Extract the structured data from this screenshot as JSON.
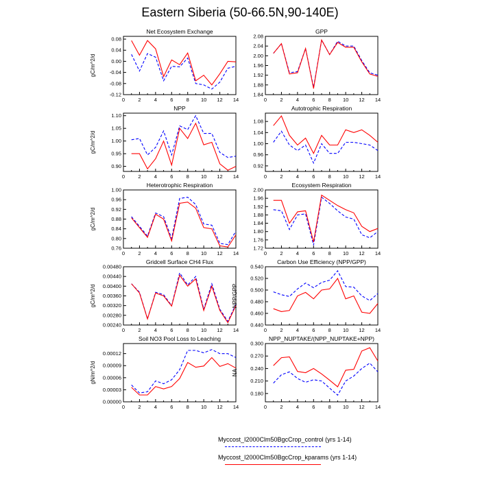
{
  "title": "Eastern Siberia (50-66.5N,90-140E)",
  "colors": {
    "control": "#0000ff",
    "kparams": "#ff0000"
  },
  "legend": {
    "control_label": "Myccost_I2000Clm50BgcCrop_control (yrs 1-14)",
    "kparams_label": "Myccost_I2000Clm50BgcCrop_kparams (yrs 1-14)"
  },
  "chart_data": [
    {
      "type": "line",
      "title": "Net Ecosystem Exchange",
      "ylabel": "gC/m^2/d",
      "xlabel": "",
      "xlim": [
        0,
        14
      ],
      "xticks": [
        "0",
        "2",
        "4",
        "6",
        "8",
        "10",
        "12",
        "14"
      ],
      "ylim": [
        -0.12,
        0.09
      ],
      "yticks": [
        "-0.12",
        "-0.08",
        "-0.04",
        "0.00",
        "0.04",
        "0.08"
      ],
      "ytick_values": [
        -0.12,
        -0.08,
        -0.04,
        0.0,
        0.04,
        0.08
      ],
      "x": [
        1,
        2,
        3,
        4,
        5,
        6,
        7,
        8,
        9,
        10,
        11,
        12,
        13,
        14
      ],
      "series": [
        {
          "name": "control",
          "values": [
            0.025,
            -0.035,
            0.028,
            0.015,
            -0.07,
            -0.018,
            -0.02,
            0.012,
            -0.08,
            -0.085,
            -0.1,
            -0.075,
            -0.025,
            -0.018
          ]
        },
        {
          "name": "kparams",
          "values": [
            0.075,
            0.022,
            0.075,
            0.045,
            -0.055,
            0.005,
            -0.012,
            0.03,
            -0.07,
            -0.05,
            -0.085,
            -0.045,
            0.0,
            -0.002
          ]
        }
      ]
    },
    {
      "type": "line",
      "title": "GPP",
      "ylabel": "",
      "xlabel": "",
      "xlim": [
        0,
        14
      ],
      "xticks": [
        "0",
        "2",
        "4",
        "6",
        "8",
        "10",
        "12",
        "14"
      ],
      "ylim": [
        1.84,
        2.08
      ],
      "yticks": [
        "1.84",
        "1.88",
        "1.92",
        "1.96",
        "2.00",
        "2.04",
        "2.08"
      ],
      "ytick_values": [
        1.84,
        1.88,
        1.92,
        1.96,
        2.0,
        2.04,
        2.08
      ],
      "x": [
        1,
        2,
        3,
        4,
        5,
        6,
        7,
        8,
        9,
        10,
        11,
        12,
        13,
        14
      ],
      "series": [
        {
          "name": "control",
          "values": [
            2.01,
            2.05,
            1.93,
            1.935,
            2.03,
            1.87,
            2.065,
            2.005,
            2.06,
            2.04,
            2.04,
            1.98,
            1.93,
            1.92
          ]
        },
        {
          "name": "kparams",
          "values": [
            2.01,
            2.05,
            1.925,
            1.93,
            2.03,
            1.865,
            2.065,
            2.005,
            2.055,
            2.035,
            2.035,
            1.975,
            1.925,
            1.915
          ]
        }
      ]
    },
    {
      "type": "line",
      "title": "NPP",
      "ylabel": "gC/m^2/d",
      "xlabel": "",
      "xlim": [
        0,
        14
      ],
      "xticks": [
        "0",
        "2",
        "4",
        "6",
        "8",
        "10",
        "12",
        "14"
      ],
      "ylim": [
        0.88,
        1.11
      ],
      "yticks": [
        "0.90",
        "0.95",
        "1.00",
        "1.05",
        "1.10"
      ],
      "ytick_values": [
        0.9,
        0.95,
        1.0,
        1.05,
        1.1
      ],
      "x": [
        1,
        2,
        3,
        4,
        5,
        6,
        7,
        8,
        9,
        10,
        11,
        12,
        13,
        14
      ],
      "series": [
        {
          "name": "control",
          "values": [
            1.005,
            1.01,
            0.945,
            0.975,
            1.04,
            0.945,
            1.06,
            1.045,
            1.1,
            1.03,
            1.03,
            0.955,
            0.935,
            0.94
          ]
        },
        {
          "name": "kparams",
          "values": [
            0.95,
            0.95,
            0.89,
            0.93,
            1.0,
            0.905,
            1.05,
            1.01,
            1.07,
            0.985,
            0.995,
            0.91,
            0.885,
            0.9
          ]
        }
      ]
    },
    {
      "type": "line",
      "title": "Autotrophic Respiration",
      "ylabel": "",
      "xlabel": "",
      "xlim": [
        0,
        14
      ],
      "xticks": [
        "0",
        "2",
        "4",
        "6",
        "8",
        "10",
        "12",
        "14"
      ],
      "ylim": [
        0.9,
        1.11
      ],
      "yticks": [
        "0.92",
        "0.96",
        "1.00",
        "1.04",
        "1.08"
      ],
      "ytick_values": [
        0.92,
        0.96,
        1.0,
        1.04,
        1.08
      ],
      "x": [
        1,
        2,
        3,
        4,
        5,
        6,
        7,
        8,
        9,
        10,
        11,
        12,
        13,
        14
      ],
      "series": [
        {
          "name": "control",
          "values": [
            1.005,
            1.045,
            0.995,
            0.975,
            0.995,
            0.93,
            1.0,
            0.965,
            0.965,
            1.005,
            1.005,
            1.0,
            0.995,
            0.975
          ]
        },
        {
          "name": "kparams",
          "values": [
            1.065,
            1.1,
            1.03,
            0.995,
            1.02,
            0.965,
            1.03,
            0.995,
            0.995,
            1.05,
            1.04,
            1.05,
            1.03,
            1.005
          ]
        }
      ]
    },
    {
      "type": "line",
      "title": "Heterotrophic Respiration",
      "ylabel": "gC/m^2/d",
      "xlabel": "",
      "xlim": [
        0,
        14
      ],
      "xticks": [
        "0",
        "2",
        "4",
        "6",
        "8",
        "10",
        "12",
        "14"
      ],
      "ylim": [
        0.76,
        1.0
      ],
      "yticks": [
        "0.76",
        "0.80",
        "0.84",
        "0.88",
        "0.92",
        "0.96",
        "1.00"
      ],
      "ytick_values": [
        0.76,
        0.8,
        0.84,
        0.88,
        0.92,
        0.96,
        1.0
      ],
      "x": [
        1,
        2,
        3,
        4,
        5,
        6,
        7,
        8,
        9,
        10,
        11,
        12,
        13,
        14
      ],
      "series": [
        {
          "name": "control",
          "values": [
            0.89,
            0.85,
            0.81,
            0.905,
            0.89,
            0.8,
            0.965,
            0.97,
            0.94,
            0.86,
            0.855,
            0.78,
            0.775,
            0.83
          ]
        },
        {
          "name": "kparams",
          "values": [
            0.885,
            0.845,
            0.805,
            0.9,
            0.88,
            0.79,
            0.945,
            0.95,
            0.925,
            0.845,
            0.84,
            0.77,
            0.765,
            0.815
          ]
        }
      ]
    },
    {
      "type": "line",
      "title": "Ecosystem Respiration",
      "ylabel": "",
      "xlabel": "",
      "xlim": [
        0,
        14
      ],
      "xticks": [
        "0",
        "2",
        "4",
        "6",
        "8",
        "10",
        "12",
        "14"
      ],
      "ylim": [
        1.72,
        2.0
      ],
      "yticks": [
        "1.72",
        "1.76",
        "1.80",
        "1.84",
        "1.88",
        "1.92",
        "1.96",
        "2.00"
      ],
      "ytick_values": [
        1.72,
        1.76,
        1.8,
        1.84,
        1.88,
        1.92,
        1.96,
        2.0
      ],
      "x": [
        1,
        2,
        3,
        4,
        5,
        6,
        7,
        8,
        9,
        10,
        11,
        12,
        13,
        14
      ],
      "series": [
        {
          "name": "control",
          "values": [
            1.905,
            1.9,
            1.81,
            1.88,
            1.885,
            1.735,
            1.965,
            1.935,
            1.9,
            1.87,
            1.86,
            1.785,
            1.77,
            1.8
          ]
        },
        {
          "name": "kparams",
          "values": [
            1.95,
            1.95,
            1.84,
            1.895,
            1.9,
            1.75,
            1.975,
            1.95,
            1.925,
            1.905,
            1.89,
            1.825,
            1.8,
            1.815
          ]
        }
      ]
    },
    {
      "type": "line",
      "title": "Gridcell Surface CH4 Flux",
      "ylabel": "gC/m^2/d",
      "xlabel": "",
      "xlim": [
        0,
        14
      ],
      "xticks": [
        "0",
        "2",
        "4",
        "6",
        "8",
        "10",
        "12",
        "14"
      ],
      "ylim": [
        0.0024,
        0.0048
      ],
      "yticks": [
        "0.00240",
        "0.00280",
        "0.00320",
        "0.00360",
        "0.00400",
        "0.00440",
        "0.00480"
      ],
      "ytick_values": [
        0.0024,
        0.0028,
        0.0032,
        0.0036,
        0.004,
        0.0044,
        0.0048
      ],
      "x": [
        1,
        2,
        3,
        4,
        5,
        6,
        7,
        8,
        9,
        10,
        11,
        12,
        13,
        14
      ],
      "series": [
        {
          "name": "control",
          "values": [
            0.0041,
            0.00375,
            0.00265,
            0.00375,
            0.00365,
            0.0032,
            0.00455,
            0.00405,
            0.0044,
            0.00305,
            0.0041,
            0.00305,
            0.00255,
            0.00325
          ]
        },
        {
          "name": "kparams",
          "values": [
            0.0041,
            0.00372,
            0.00265,
            0.00372,
            0.0036,
            0.00318,
            0.00445,
            0.004,
            0.0043,
            0.003,
            0.004,
            0.003,
            0.0025,
            0.0032
          ]
        }
      ]
    },
    {
      "type": "line",
      "title": "Carbon Use Efficiency (NPP/GPP)",
      "ylabel": "NPP/GPP",
      "xlabel": "",
      "xlim": [
        0,
        14
      ],
      "xticks": [
        "0",
        "2",
        "4",
        "6",
        "8",
        "10",
        "12",
        "14"
      ],
      "ylim": [
        0.44,
        0.54
      ],
      "yticks": [
        "0.440",
        "0.460",
        "0.480",
        "0.500",
        "0.520",
        "0.540"
      ],
      "ytick_values": [
        0.44,
        0.46,
        0.48,
        0.5,
        0.52,
        0.54
      ],
      "x": [
        1,
        2,
        3,
        4,
        5,
        6,
        7,
        8,
        9,
        10,
        11,
        12,
        13,
        14
      ],
      "series": [
        {
          "name": "control",
          "values": [
            0.497,
            0.492,
            0.489,
            0.502,
            0.512,
            0.504,
            0.513,
            0.517,
            0.533,
            0.506,
            0.505,
            0.49,
            0.482,
            0.494
          ]
        },
        {
          "name": "kparams",
          "values": [
            0.468,
            0.463,
            0.465,
            0.49,
            0.496,
            0.485,
            0.5,
            0.502,
            0.52,
            0.485,
            0.49,
            0.462,
            0.46,
            0.477
          ]
        }
      ]
    },
    {
      "type": "line",
      "title": "Soil NO3 Pool Loss to Leaching",
      "ylabel": "gN/m^2/d",
      "xlabel": "",
      "xlim": [
        0,
        14
      ],
      "xticks": [
        "0",
        "2",
        "4",
        "6",
        "8",
        "10",
        "12",
        "14"
      ],
      "ylim": [
        0.0,
        0.000145
      ],
      "yticks": [
        "0.00000",
        "0.00003",
        "0.00006",
        "0.00009",
        "0.00012"
      ],
      "ytick_values": [
        0.0,
        3e-05,
        6e-05,
        9e-05,
        0.00012
      ],
      "x": [
        1,
        2,
        3,
        4,
        5,
        6,
        7,
        8,
        9,
        10,
        11,
        12,
        13,
        14
      ],
      "series": [
        {
          "name": "control",
          "values": [
            4.2e-05,
            2.2e-05,
            2.5e-05,
            5.2e-05,
            4.5e-05,
            5.5e-05,
            8e-05,
            0.000128,
            0.000128,
            0.000122,
            0.00013,
            0.00012,
            0.00012,
            0.00011
          ]
        },
        {
          "name": "kparams",
          "values": [
            3.6e-05,
            1.7e-05,
            1.7e-05,
            3.8e-05,
            3.2e-05,
            3.8e-05,
            5.8e-05,
            9.8e-05,
            8.6e-05,
            8.9e-05,
            0.00011,
            8.8e-05,
            9.5e-05,
            8.4e-05
          ]
        }
      ]
    },
    {
      "type": "line",
      "title": "NPP_NUPTAKE/(NPP_NUPTAKE+NPP)",
      "ylabel": "NA",
      "xlabel": "",
      "xlim": [
        0,
        14
      ],
      "xticks": [
        "0",
        "2",
        "4",
        "6",
        "8",
        "10",
        "12",
        "14"
      ],
      "ylim": [
        0.16,
        0.3
      ],
      "yticks": [
        "0.180",
        "0.210",
        "0.240",
        "0.270",
        "0.300"
      ],
      "ytick_values": [
        0.18,
        0.21,
        0.24,
        0.27,
        0.3
      ],
      "x": [
        1,
        2,
        3,
        4,
        5,
        6,
        7,
        8,
        9,
        10,
        11,
        12,
        13,
        14
      ],
      "series": [
        {
          "name": "control",
          "values": [
            0.205,
            0.225,
            0.232,
            0.216,
            0.207,
            0.213,
            0.21,
            0.193,
            0.176,
            0.21,
            0.222,
            0.24,
            0.253,
            0.232
          ]
        },
        {
          "name": "kparams",
          "values": [
            0.247,
            0.266,
            0.268,
            0.233,
            0.23,
            0.24,
            0.227,
            0.212,
            0.196,
            0.236,
            0.238,
            0.282,
            0.29,
            0.258
          ]
        }
      ]
    }
  ]
}
